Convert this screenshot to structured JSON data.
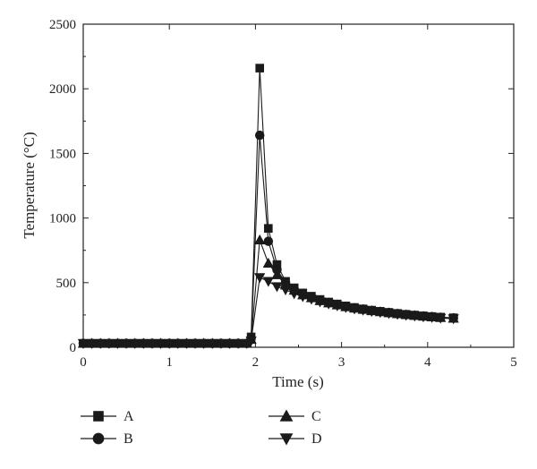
{
  "chart_data": {
    "type": "line",
    "title": "",
    "xlabel": "Time (s)",
    "ylabel": "Temperature (°C)",
    "xlim": [
      0,
      5
    ],
    "ylim": [
      0,
      2500
    ],
    "xticks": [
      "0",
      "1",
      "2",
      "3",
      "4",
      "5"
    ],
    "yticks": [
      "0",
      "500",
      "1000",
      "1500",
      "2000",
      "2500"
    ],
    "grid": false,
    "legend_position": "bottom",
    "series": [
      {
        "name": "A",
        "marker": "square",
        "x": [
          0.0,
          0.1,
          0.2,
          0.3,
          0.4,
          0.5,
          0.6,
          0.7,
          0.8,
          0.9,
          1.0,
          1.1,
          1.2,
          1.3,
          1.4,
          1.5,
          1.6,
          1.7,
          1.8,
          1.9,
          1.95,
          2.05,
          2.15,
          2.25,
          2.35,
          2.45,
          2.55,
          2.65,
          2.75,
          2.85,
          2.95,
          3.05,
          3.15,
          3.25,
          3.35,
          3.45,
          3.55,
          3.65,
          3.75,
          3.85,
          3.95,
          4.05,
          4.15,
          4.3
        ],
        "y": [
          30,
          30,
          30,
          30,
          30,
          30,
          30,
          30,
          30,
          30,
          30,
          30,
          30,
          30,
          30,
          30,
          30,
          30,
          30,
          30,
          80,
          2160,
          920,
          640,
          510,
          460,
          420,
          395,
          370,
          350,
          335,
          320,
          308,
          297,
          287,
          278,
          270,
          262,
          255,
          249,
          243,
          238,
          233,
          228
        ]
      },
      {
        "name": "B",
        "marker": "circle",
        "x": [
          0.0,
          0.1,
          0.2,
          0.3,
          0.4,
          0.5,
          0.6,
          0.7,
          0.8,
          0.9,
          1.0,
          1.1,
          1.2,
          1.3,
          1.4,
          1.5,
          1.6,
          1.7,
          1.8,
          1.9,
          1.95,
          2.05,
          2.15,
          2.25,
          2.35,
          2.45,
          2.55,
          2.65,
          2.75,
          2.85,
          2.95,
          3.05,
          3.15,
          3.25,
          3.35,
          3.45,
          3.55,
          3.65,
          3.75,
          3.85,
          3.95,
          4.05,
          4.15,
          4.3
        ],
        "y": [
          30,
          30,
          30,
          30,
          30,
          30,
          30,
          30,
          30,
          30,
          30,
          30,
          30,
          30,
          30,
          30,
          30,
          30,
          30,
          30,
          70,
          1640,
          820,
          600,
          500,
          450,
          412,
          388,
          364,
          345,
          330,
          316,
          304,
          294,
          284,
          276,
          268,
          260,
          253,
          247,
          241,
          236,
          231,
          226
        ]
      },
      {
        "name": "C",
        "marker": "triangle-up",
        "x": [
          0.0,
          0.1,
          0.2,
          0.3,
          0.4,
          0.5,
          0.6,
          0.7,
          0.8,
          0.9,
          1.0,
          1.1,
          1.2,
          1.3,
          1.4,
          1.5,
          1.6,
          1.7,
          1.8,
          1.9,
          1.95,
          2.05,
          2.15,
          2.25,
          2.35,
          2.45,
          2.55,
          2.65,
          2.75,
          2.85,
          2.95,
          3.05,
          3.15,
          3.25,
          3.35,
          3.45,
          3.55,
          3.65,
          3.75,
          3.85,
          3.95,
          4.05,
          4.15,
          4.3
        ],
        "y": [
          30,
          30,
          30,
          30,
          30,
          30,
          30,
          30,
          30,
          30,
          30,
          30,
          30,
          30,
          30,
          30,
          30,
          30,
          30,
          30,
          60,
          830,
          650,
          560,
          480,
          440,
          405,
          382,
          360,
          342,
          327,
          313,
          302,
          292,
          282,
          274,
          266,
          258,
          251,
          245,
          239,
          234,
          229,
          224
        ]
      },
      {
        "name": "D",
        "marker": "triangle-down",
        "x": [
          0.0,
          0.1,
          0.2,
          0.3,
          0.4,
          0.5,
          0.6,
          0.7,
          0.8,
          0.9,
          1.0,
          1.1,
          1.2,
          1.3,
          1.4,
          1.5,
          1.6,
          1.7,
          1.8,
          1.9,
          1.95,
          2.05,
          2.15,
          2.25,
          2.35,
          2.45,
          2.55,
          2.65,
          2.75,
          2.85,
          2.95,
          3.05,
          3.15,
          3.25,
          3.35,
          3.45,
          3.55,
          3.65,
          3.75,
          3.85,
          3.95,
          4.05,
          4.15,
          4.3
        ],
        "y": [
          30,
          30,
          30,
          30,
          30,
          30,
          30,
          30,
          30,
          30,
          30,
          30,
          30,
          30,
          30,
          30,
          30,
          30,
          30,
          30,
          50,
          540,
          510,
          470,
          445,
          415,
          392,
          372,
          352,
          336,
          321,
          308,
          297,
          287,
          278,
          270,
          262,
          255,
          248,
          242,
          236,
          231,
          226,
          221
        ]
      }
    ]
  }
}
